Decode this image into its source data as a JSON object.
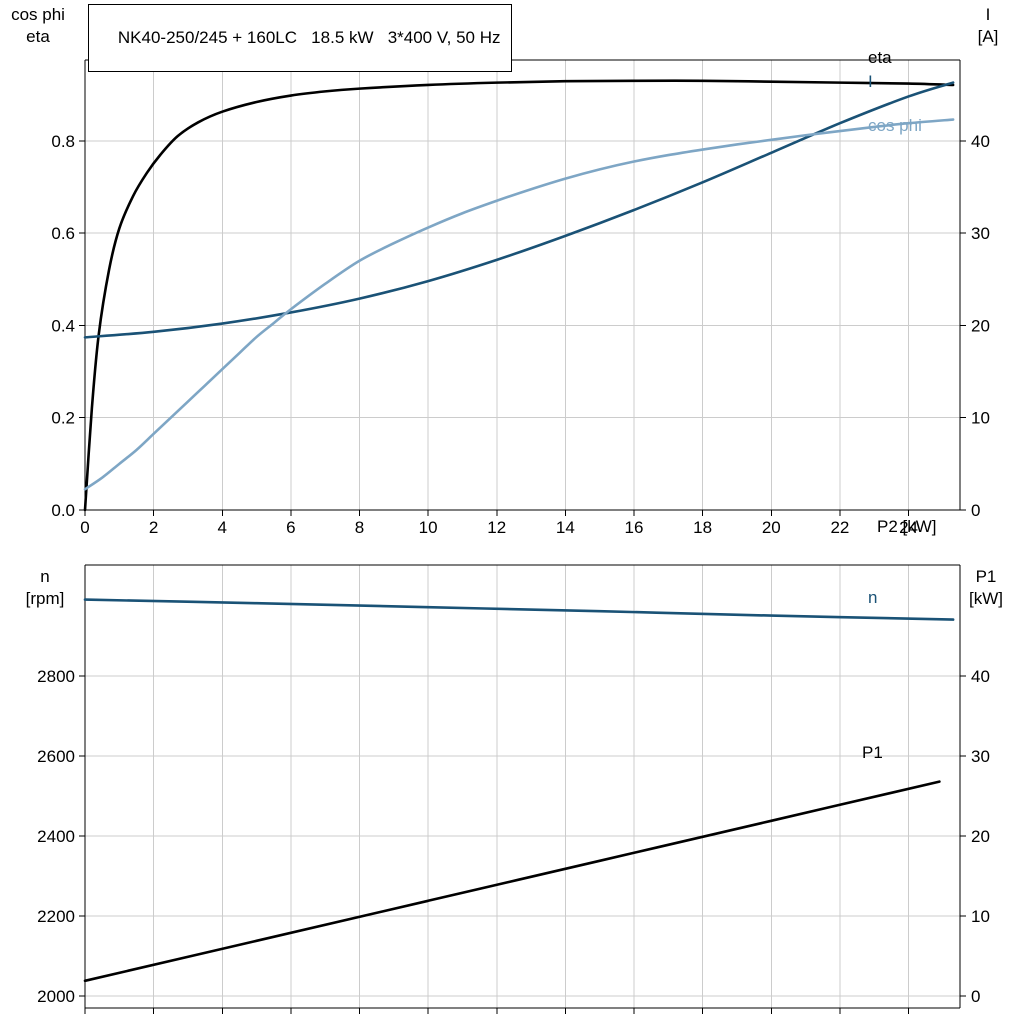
{
  "window": {
    "background": "#ffffff",
    "grid_color": "#cccccc",
    "axis_color": "#000000"
  },
  "chart_data": [
    {
      "type": "line",
      "title": "NK40-250/245 + 160LC   18.5 kW   3*400 V, 50 Hz",
      "x_label": "P2 [kW]",
      "xlim": [
        0,
        25.5
      ],
      "x_tick_values": [
        0,
        2,
        4,
        6,
        8,
        10,
        12,
        14,
        16,
        18,
        20,
        22,
        24
      ],
      "x_tick_labels": [
        "0",
        "2",
        "4",
        "6",
        "8",
        "10",
        "12",
        "14",
        "16",
        "18",
        "20",
        "22",
        "24"
      ],
      "grid": true,
      "legend_position": "inline-right",
      "left_axis": {
        "header_lines": [
          "cos phi",
          "eta"
        ],
        "lim": [
          0,
          0.975
        ],
        "tick_values": [
          0,
          0.2,
          0.4,
          0.6,
          0.8
        ],
        "tick_labels": [
          "0.0",
          "0.2",
          "0.4",
          "0.6",
          "0.8"
        ]
      },
      "right_axis": {
        "header_lines": [
          "I",
          "[A]"
        ],
        "lim": [
          0,
          48.75
        ],
        "tick_values": [
          0,
          10,
          20,
          30,
          40
        ],
        "tick_labels": [
          "0",
          "10",
          "20",
          "30",
          "40"
        ]
      },
      "series": [
        {
          "name": "eta",
          "axis": "left",
          "color": "#000000",
          "label": "eta",
          "label_pos": [
            868,
            63
          ],
          "x": [
            0,
            0.2,
            0.4,
            0.7,
            1,
            1.4,
            1.8,
            2.2,
            2.7,
            3.3,
            4,
            5,
            6,
            7,
            8,
            10,
            12,
            14,
            16,
            18,
            20,
            22,
            24,
            25.3
          ],
          "y": [
            0,
            0.22,
            0.38,
            0.52,
            0.61,
            0.68,
            0.73,
            0.77,
            0.81,
            0.84,
            0.863,
            0.884,
            0.898,
            0.907,
            0.913,
            0.921,
            0.926,
            0.929,
            0.93,
            0.93,
            0.928,
            0.926,
            0.924,
            0.921
          ]
        },
        {
          "name": "I",
          "axis": "right",
          "color": "#1a5276",
          "label": "I",
          "label_pos": [
            868,
            87
          ],
          "x": [
            0,
            2,
            4,
            6,
            8,
            10,
            12,
            14,
            16,
            18,
            20,
            22,
            24,
            25.3
          ],
          "y": [
            18.7,
            19.3,
            20.2,
            21.4,
            22.9,
            24.8,
            27.1,
            29.7,
            32.5,
            35.5,
            38.7,
            41.9,
            44.8,
            46.3
          ]
        },
        {
          "name": "cos phi",
          "axis": "left",
          "color": "#7ea6c5",
          "label": "cos phi",
          "label_pos": [
            868,
            131
          ],
          "x": [
            0,
            0.5,
            1,
            1.5,
            2,
            2.5,
            3,
            3.5,
            4,
            4.5,
            5,
            5.5,
            6,
            7,
            8,
            9,
            10,
            11,
            12,
            13,
            14,
            15,
            16,
            17,
            18,
            19,
            20,
            21,
            22,
            23,
            24,
            25.3
          ],
          "y": [
            0.045,
            0.07,
            0.1,
            0.13,
            0.165,
            0.2,
            0.235,
            0.27,
            0.305,
            0.34,
            0.375,
            0.405,
            0.435,
            0.49,
            0.54,
            0.578,
            0.612,
            0.643,
            0.67,
            0.695,
            0.718,
            0.738,
            0.755,
            0.769,
            0.781,
            0.792,
            0.802,
            0.812,
            0.821,
            0.83,
            0.838,
            0.846
          ]
        }
      ]
    },
    {
      "type": "line",
      "title": "",
      "x_label": "",
      "xlim": [
        0,
        25.5
      ],
      "x_tick_values": [
        0,
        2,
        4,
        6,
        8,
        10,
        12,
        14,
        16,
        18,
        20,
        22,
        24
      ],
      "x_tick_labels": [],
      "grid": true,
      "left_axis": {
        "header_lines": [
          "n",
          "[rpm]"
        ],
        "lim": [
          1970,
          3077.5
        ],
        "tick_values": [
          2000,
          2200,
          2400,
          2600,
          2800
        ],
        "tick_labels": [
          "2000",
          "2200",
          "2400",
          "2600",
          "2800"
        ]
      },
      "right_axis": {
        "header_lines": [
          "P1",
          "[kW]"
        ],
        "lim": [
          -1.5,
          53.875
        ],
        "tick_values": [
          0,
          10,
          20,
          30,
          40
        ],
        "tick_labels": [
          "0",
          "10",
          "20",
          "30",
          "40"
        ]
      },
      "series": [
        {
          "name": "n",
          "axis": "left",
          "color": "#1a5276",
          "label": "n",
          "label_pos": [
            868,
            58
          ],
          "x": [
            0,
            5,
            10,
            15,
            20,
            25.3
          ],
          "y": [
            2991,
            2982,
            2972,
            2962,
            2951,
            2941
          ]
        },
        {
          "name": "P1",
          "axis": "right",
          "color": "#000000",
          "label": "P1",
          "label_pos": [
            862,
            213
          ],
          "x": [
            0,
            5,
            10,
            15,
            20,
            24.9
          ],
          "y": [
            1.9,
            6.9,
            11.9,
            16.9,
            21.9,
            26.8
          ]
        }
      ]
    }
  ]
}
